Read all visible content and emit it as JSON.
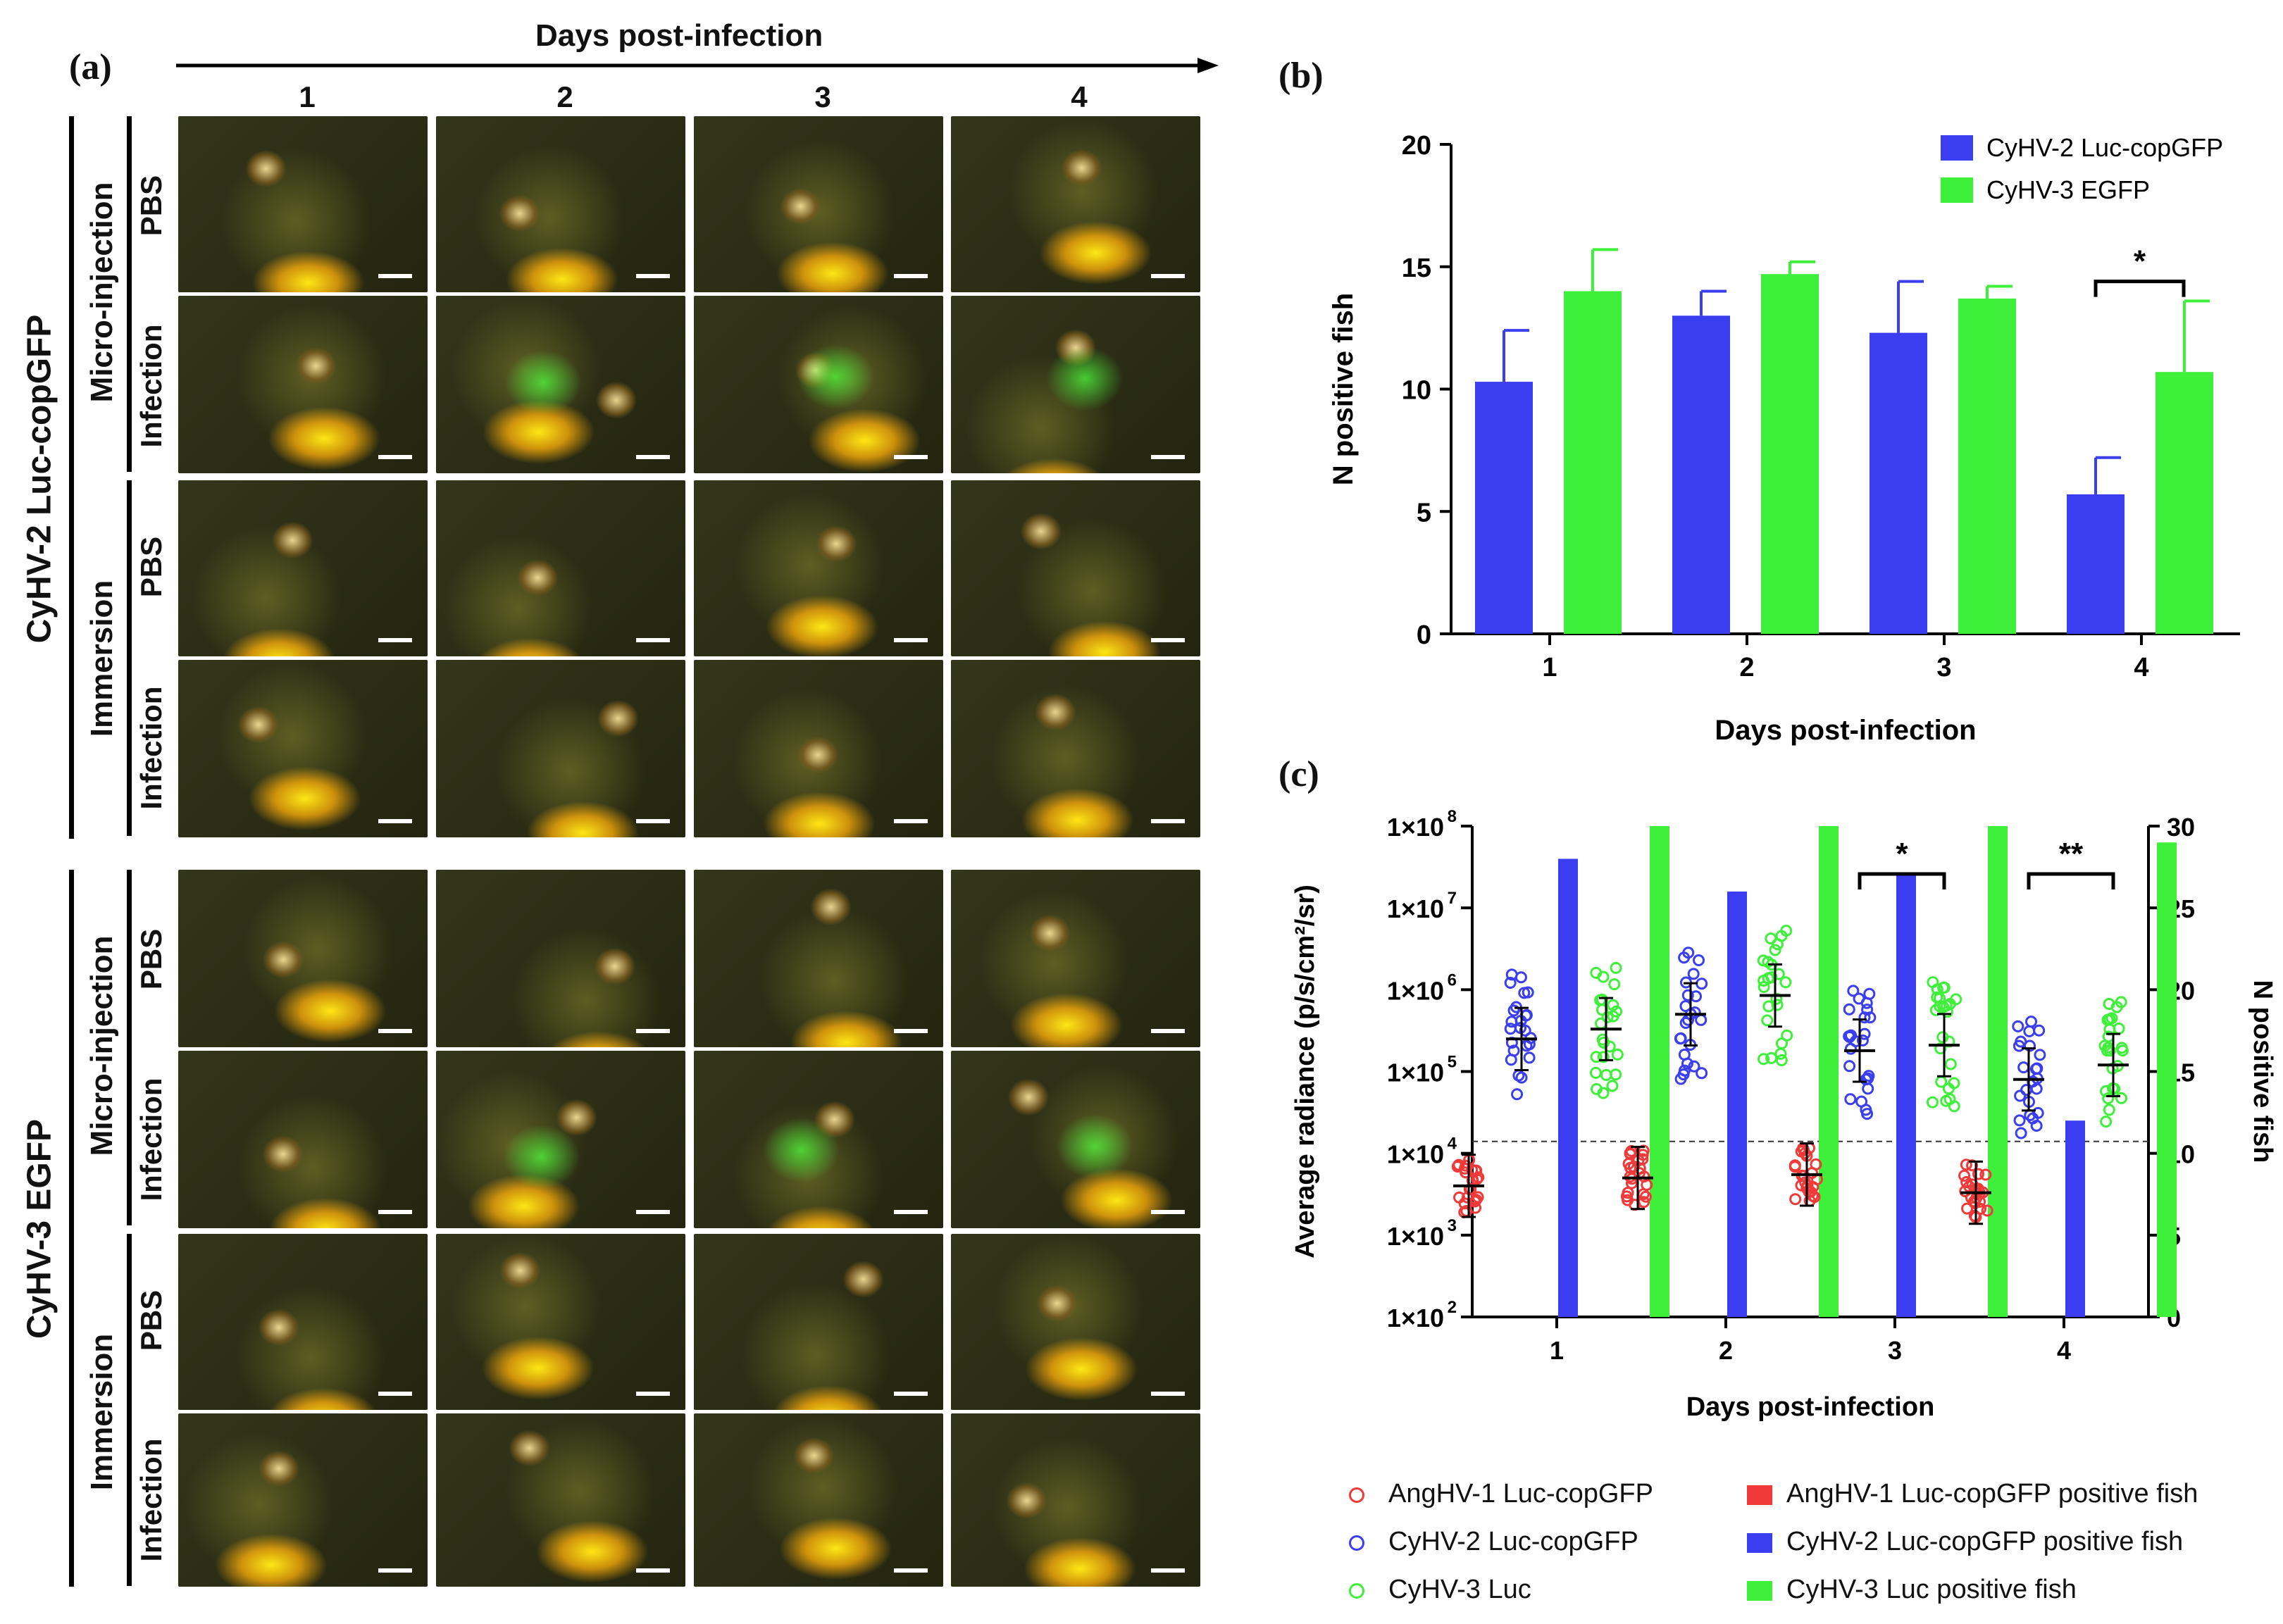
{
  "panel_a": {
    "label": "(a)",
    "days_title": "Days post-infection",
    "days": [
      "1",
      "2",
      "3",
      "4"
    ],
    "groups": [
      {
        "name": "CyHV-2 Luc-copGFP",
        "routes": [
          {
            "name": "Micro-injection",
            "rows": [
              "PBS",
              "Infection"
            ]
          },
          {
            "name": "Immersion",
            "rows": [
              "PBS",
              "Infection"
            ]
          }
        ]
      },
      {
        "name": "CyHV-3 EGFP",
        "routes": [
          {
            "name": "Micro-injection",
            "rows": [
              "PBS",
              "Infection"
            ]
          },
          {
            "name": "Immersion",
            "rows": [
              "PBS",
              "Infection"
            ]
          }
        ]
      }
    ]
  },
  "panel_b": {
    "label": "(b)"
  },
  "panel_c": {
    "label": "(c)"
  },
  "colors": {
    "red": "#f03a3a",
    "blue": "#3a3ef0",
    "green": "#3ef03a"
  },
  "chart_data": [
    {
      "type": "bar",
      "ylabel": "N positive fish",
      "xlabel": "Days post-infection",
      "categories": [
        "1",
        "2",
        "3",
        "4"
      ],
      "ylim": [
        0,
        20
      ],
      "yticks": [
        "0",
        "5",
        "10",
        "15",
        "20"
      ],
      "series": [
        {
          "name": "CyHV-2 Luc-copGFP",
          "color": "#3a3ef0",
          "values": [
            10.3,
            13.0,
            12.3,
            5.7
          ],
          "errors": [
            2.1,
            1.0,
            2.1,
            1.5
          ]
        },
        {
          "name": "CyHV-3 EGFP",
          "color": "#3ef03a",
          "values": [
            14.0,
            14.7,
            13.7,
            10.7
          ],
          "errors": [
            1.7,
            0.5,
            0.5,
            2.9
          ]
        }
      ],
      "annotations": [
        {
          "category": "4",
          "text": "*"
        }
      ],
      "legend": "top-right"
    },
    {
      "type": "scatter",
      "ylabel": "Average radiance (p/s/cm²/sr)",
      "y2label": "N positive fish",
      "xlabel": "Days post-infection",
      "categories": [
        "1",
        "2",
        "3",
        "4"
      ],
      "yscale": "log",
      "ylim": [
        100,
        100000000
      ],
      "yticks": [
        "1×10",
        "1×10",
        "1×10",
        "1×10",
        "1×10",
        "1×10",
        "1×10"
      ],
      "ytick_exps": [
        "2",
        "3",
        "4",
        "5",
        "6",
        "7",
        "8"
      ],
      "y2lim": [
        0,
        30
      ],
      "y2ticks": [
        "0",
        "5",
        "10",
        "15",
        "20",
        "25",
        "30"
      ],
      "threshold": 14000,
      "scatter_series": [
        {
          "name": "AngHV-1 Luc-copGFP",
          "color": "#f03a3a",
          "mean": [
            4000,
            5000,
            5500,
            3300
          ],
          "days": [
            "1",
            "2",
            "3",
            "4"
          ]
        },
        {
          "name": "CyHV-2 Luc-copGFP",
          "color": "#3a3ef0",
          "mean": [
            250000,
            500000,
            180000,
            80000
          ],
          "days": [
            "1",
            "2",
            "3",
            "4"
          ]
        },
        {
          "name": "CyHV-3 Luc",
          "color": "#3ef03a",
          "mean": [
            330000,
            850000,
            210000,
            120000
          ],
          "days": [
            "1",
            "2",
            "3",
            "4"
          ]
        }
      ],
      "bar_series": [
        {
          "name": "AngHV-1 Luc-copGFP positive fish",
          "color": "#f03a3a",
          "values": [
            0,
            0,
            0,
            0
          ]
        },
        {
          "name": "CyHV-2 Luc-copGFP positive fish",
          "color": "#3a3ef0",
          "values": [
            28,
            26,
            27,
            12
          ]
        },
        {
          "name": "CyHV-3 Luc positive fish",
          "color": "#3ef03a",
          "values": [
            30,
            30,
            30,
            29
          ]
        }
      ],
      "annotations": [
        {
          "category": "3",
          "text": "*"
        },
        {
          "category": "4",
          "text": "**"
        }
      ],
      "legend": "bottom"
    }
  ]
}
